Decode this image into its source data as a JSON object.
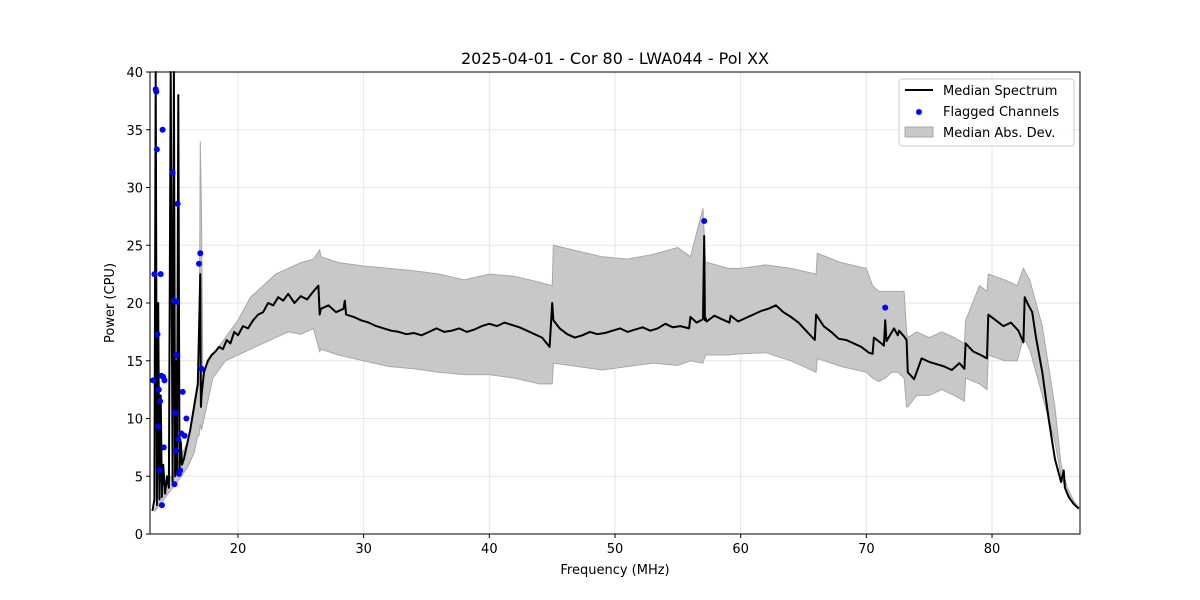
{
  "chart_data": {
    "type": "line",
    "title": "2025-04-01 - Cor 80 - LWA044 - Pol XX",
    "xlabel": "Frequency (MHz)",
    "ylabel": "Power (CPU)",
    "xlim": [
      13,
      87
    ],
    "ylim": [
      0,
      40
    ],
    "xticks": [
      20,
      30,
      40,
      50,
      60,
      70,
      80
    ],
    "yticks": [
      0,
      5,
      10,
      15,
      20,
      25,
      30,
      35,
      40
    ],
    "grid": true,
    "legend_position": "top-right",
    "legend": [
      "Median Spectrum",
      "Flagged Channels",
      "Median Abs. Dev."
    ],
    "colors": {
      "median": "#000000",
      "flagged": "#0000ff",
      "band_fill": "#c8c8c8",
      "band_edge": "#a8a8a8"
    },
    "series": [
      {
        "name": "Median Spectrum",
        "kind": "line",
        "x": [
          13.2,
          13.35,
          13.45,
          13.55,
          13.65,
          13.75,
          13.85,
          13.95,
          14.05,
          14.2,
          14.35,
          14.5,
          14.65,
          14.8,
          14.9,
          15.0,
          15.08,
          15.15,
          15.25,
          15.35,
          15.45,
          15.55,
          15.7,
          15.9,
          16.2,
          16.5,
          16.8,
          17.0,
          17.05,
          17.1,
          17.3,
          17.6,
          17.9,
          18.2,
          18.5,
          18.8,
          19.1,
          19.4,
          19.7,
          20.0,
          20.4,
          20.8,
          21.2,
          21.6,
          22.0,
          22.4,
          22.8,
          23.2,
          23.6,
          24.0,
          24.5,
          25.0,
          25.5,
          26.0,
          26.4,
          26.5,
          26.6,
          27.2,
          27.8,
          28.4,
          28.5,
          28.6,
          29.2,
          29.8,
          30.4,
          31.0,
          31.6,
          32.2,
          32.8,
          33.4,
          34.0,
          34.6,
          35.2,
          35.8,
          36.4,
          37.0,
          37.6,
          38.2,
          38.8,
          39.4,
          40.0,
          40.6,
          41.2,
          41.8,
          42.4,
          43.0,
          43.6,
          44.2,
          44.8,
          45.0,
          45.1,
          45.6,
          46.2,
          46.8,
          47.4,
          48.0,
          48.6,
          49.2,
          49.8,
          50.4,
          51.0,
          51.6,
          52.2,
          52.8,
          53.4,
          54.0,
          54.6,
          55.2,
          55.9,
          56.0,
          56.5,
          57.0,
          57.1,
          57.15,
          57.2,
          57.3,
          57.9,
          58.5,
          59.1,
          59.2,
          59.8,
          60.4,
          61.0,
          61.6,
          62.2,
          62.8,
          63.4,
          64.0,
          64.6,
          65.2,
          65.9,
          66.0,
          66.6,
          67.2,
          67.8,
          68.4,
          69.0,
          69.6,
          70.2,
          70.5,
          70.6,
          71.2,
          71.4,
          71.5,
          71.6,
          72.2,
          72.5,
          72.6,
          73.0,
          73.2,
          73.3,
          73.8,
          74.4,
          75.0,
          75.6,
          76.2,
          76.8,
          77.4,
          77.8,
          77.9,
          78.5,
          79.1,
          79.6,
          79.7,
          80.3,
          80.9,
          81.5,
          82.1,
          82.5,
          82.6,
          82.9,
          83.2,
          83.5,
          84.0,
          84.5,
          85.0,
          85.5,
          85.7,
          85.8,
          86.1,
          86.5,
          86.9
        ],
        "y": [
          2.0,
          3.0,
          40,
          2.5,
          20,
          3.0,
          12,
          3.2,
          6.0,
          3.5,
          5.0,
          4.0,
          40,
          4.5,
          40,
          5.0,
          15,
          5.2,
          38,
          5.5,
          8.0,
          6.0,
          6.5,
          7.5,
          9.0,
          11.0,
          13.0,
          22.5,
          11.0,
          12.0,
          14.0,
          15.0,
          15.5,
          15.8,
          16.2,
          16.0,
          16.8,
          16.5,
          17.5,
          17.2,
          18.0,
          17.8,
          18.5,
          19.0,
          19.2,
          20.0,
          19.8,
          20.5,
          20.2,
          20.8,
          20.0,
          20.6,
          20.3,
          21.0,
          21.5,
          19.0,
          19.5,
          19.8,
          19.2,
          19.5,
          20.2,
          19.0,
          18.8,
          18.5,
          18.3,
          18.0,
          17.8,
          17.6,
          17.5,
          17.3,
          17.4,
          17.2,
          17.5,
          17.8,
          17.5,
          17.6,
          17.8,
          17.5,
          17.7,
          18.0,
          18.2,
          18.0,
          18.3,
          18.1,
          17.9,
          17.6,
          17.3,
          17.0,
          16.2,
          20.0,
          18.5,
          17.8,
          17.3,
          17.0,
          17.2,
          17.5,
          17.3,
          17.4,
          17.6,
          17.8,
          17.5,
          17.7,
          17.9,
          17.6,
          17.8,
          18.2,
          17.9,
          18.0,
          17.8,
          18.8,
          18.3,
          18.6,
          25.8,
          18.5,
          18.7,
          18.4,
          18.9,
          18.6,
          18.3,
          18.9,
          18.4,
          18.7,
          19.0,
          19.3,
          19.5,
          19.8,
          19.2,
          18.8,
          18.3,
          17.6,
          16.8,
          19.0,
          18.0,
          17.5,
          16.9,
          16.8,
          16.5,
          16.2,
          15.7,
          15.6,
          17.0,
          16.5,
          16.3,
          18.5,
          16.7,
          17.8,
          17.2,
          17.6,
          17.1,
          16.8,
          14.0,
          13.4,
          15.2,
          14.9,
          14.7,
          14.5,
          14.2,
          14.8,
          14.3,
          16.5,
          15.8,
          15.5,
          15.2,
          19.0,
          18.5,
          18.0,
          18.3,
          17.6,
          16.6,
          20.5,
          19.8,
          19.2,
          17.0,
          14.0,
          10.0,
          6.5,
          4.5,
          5.5,
          4.0,
          3.2,
          2.6,
          2.2
        ]
      },
      {
        "name": "Median Abs. Dev.",
        "kind": "band",
        "x": [
          13.4,
          15.5,
          16.0,
          16.5,
          16.8,
          16.9,
          17.0,
          17.1,
          17.2,
          17.5,
          18.0,
          19.0,
          20.0,
          21.0,
          22.0,
          23.0,
          24.0,
          25.0,
          26.0,
          26.5,
          26.6,
          28.0,
          30.0,
          32.0,
          34.0,
          36.0,
          38.0,
          40.0,
          42.0,
          44.0,
          45.0,
          45.1,
          47.0,
          49.0,
          51.0,
          53.0,
          55.0,
          56.0,
          57.0,
          57.2,
          57.4,
          59.0,
          60.0,
          62.0,
          64.0,
          66.0,
          66.1,
          68.0,
          70.0,
          70.5,
          71.0,
          71.5,
          72.0,
          72.5,
          73.0,
          73.2,
          73.3,
          74.0,
          75.0,
          76.0,
          77.0,
          77.8,
          77.9,
          79.0,
          79.6,
          79.7,
          81.0,
          82.0,
          82.5,
          83.0,
          84.0,
          85.0,
          85.5,
          86.0,
          86.5,
          86.9
        ],
        "lower": [
          2.0,
          5.0,
          5.8,
          7.0,
          8.5,
          8.5,
          9.5,
          9.0,
          9.5,
          11.0,
          13.5,
          15.0,
          15.5,
          16.0,
          16.5,
          17.0,
          17.5,
          17.3,
          17.8,
          15.8,
          16.0,
          15.5,
          15.0,
          14.5,
          14.3,
          14.0,
          13.8,
          13.8,
          13.5,
          13.0,
          13.0,
          14.8,
          14.5,
          14.2,
          14.5,
          14.8,
          14.6,
          15.0,
          14.8,
          15.5,
          15.5,
          15.5,
          15.6,
          15.7,
          15.0,
          14.0,
          15.2,
          14.5,
          14.0,
          13.5,
          13.2,
          13.5,
          14.0,
          14.0,
          13.5,
          11.0,
          11.0,
          12.0,
          12.0,
          12.5,
          12.0,
          11.5,
          13.5,
          13.0,
          12.5,
          15.5,
          15.0,
          15.0,
          17.0,
          16.0,
          12.0,
          8.0,
          5.0,
          3.5,
          2.6,
          2.2
        ],
        "upper": [
          2.2,
          6.8,
          8.0,
          10.5,
          12.5,
          13.0,
          34.0,
          28.0,
          14.0,
          14.5,
          15.5,
          17.0,
          18.5,
          20.5,
          21.5,
          22.5,
          23.0,
          23.5,
          23.8,
          24.6,
          24.0,
          23.5,
          23.2,
          23.0,
          22.8,
          22.5,
          22.0,
          22.5,
          22.3,
          21.8,
          21.5,
          25.0,
          24.5,
          24.0,
          23.8,
          24.2,
          24.8,
          24.0,
          28.2,
          23.5,
          23.5,
          23.0,
          23.0,
          23.3,
          23.0,
          22.5,
          24.3,
          23.5,
          23.0,
          21.5,
          21.0,
          21.0,
          21.0,
          21.0,
          21.0,
          17.5,
          17.0,
          17.5,
          17.0,
          17.5,
          17.0,
          16.5,
          18.5,
          21.5,
          21.0,
          22.5,
          22.0,
          21.5,
          23.0,
          22.0,
          18.0,
          11.0,
          6.0,
          4.0,
          2.9,
          2.3
        ]
      },
      {
        "name": "Flagged Channels",
        "kind": "scatter",
        "x": [
          13.25,
          13.35,
          13.45,
          13.5,
          13.55,
          13.6,
          13.65,
          13.7,
          13.75,
          13.8,
          13.85,
          13.9,
          13.95,
          14.0,
          14.05,
          14.1,
          14.15,
          14.8,
          14.9,
          14.95,
          15.0,
          15.05,
          15.1,
          15.15,
          15.2,
          15.25,
          15.3,
          15.4,
          15.5,
          15.6,
          15.75,
          15.9,
          16.9,
          17.0,
          17.1,
          57.1,
          71.5
        ],
        "y": [
          13.3,
          22.5,
          38.5,
          38.3,
          33.3,
          17.3,
          9.3,
          12.5,
          5.5,
          11.5,
          22.5,
          13.7,
          2.5,
          35.0,
          13.6,
          7.5,
          13.3,
          31.3,
          20.2,
          4.3,
          10.5,
          7.2,
          15.5,
          20.1,
          28.6,
          8.2,
          5.2,
          5.5,
          8.7,
          12.3,
          8.5,
          10.0,
          23.4,
          24.3,
          14.3,
          27.1,
          19.6
        ]
      }
    ]
  }
}
